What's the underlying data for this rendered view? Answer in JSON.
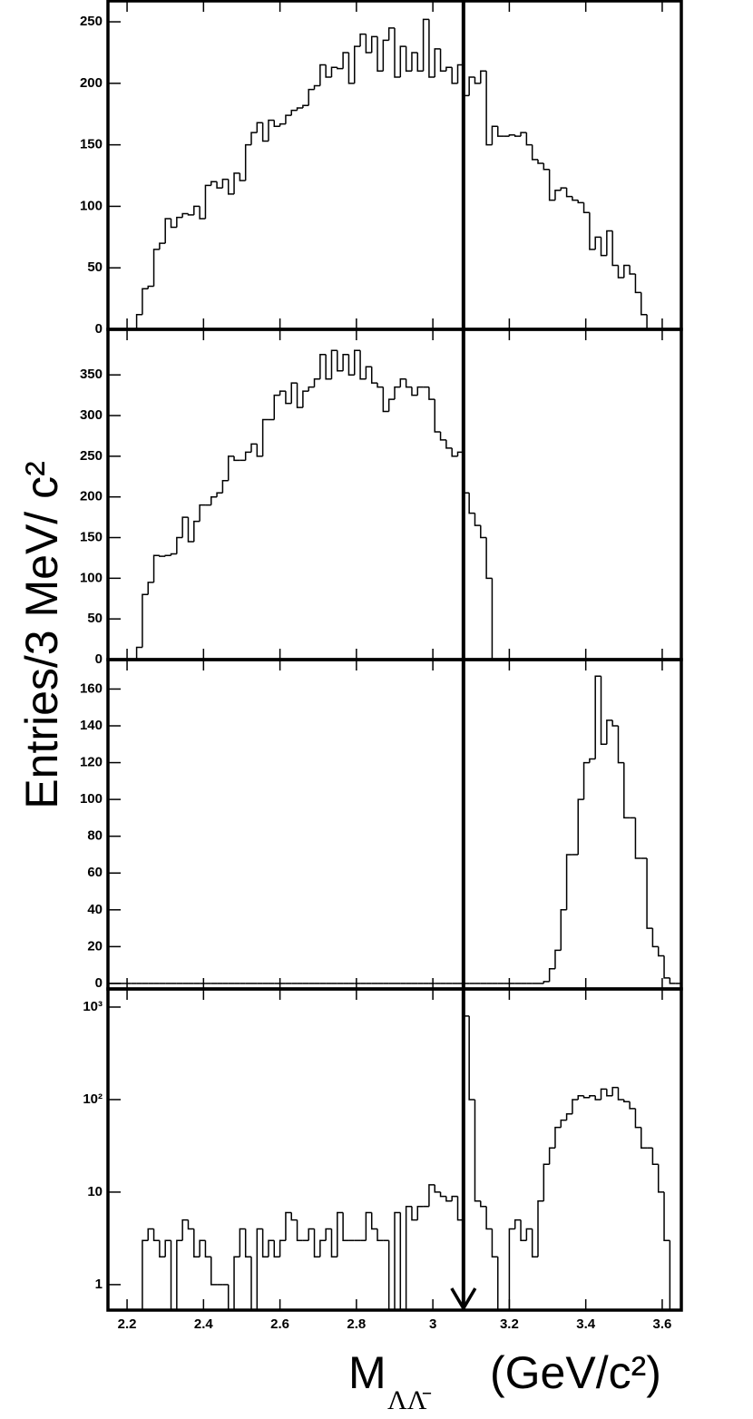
{
  "ylabel": "Entries/3 MeV/ c²",
  "xlabel": {
    "text": "M",
    "subscript": "ΛΛ̄",
    "unit": "(GeV/c²)"
  },
  "cut_x": 3.08,
  "chart_data": [
    {
      "type": "histogram",
      "xlim": [
        2.15,
        3.65
      ],
      "ylim": [
        0,
        267
      ],
      "yticks": [
        0,
        50,
        100,
        150,
        200,
        250
      ],
      "color": "#000000",
      "bins": [
        2.15,
        2.165,
        2.18,
        2.195,
        2.21,
        2.225,
        2.24,
        2.255,
        2.27,
        2.285,
        2.3,
        2.315,
        2.33,
        2.345,
        2.36,
        2.375,
        2.39,
        2.405,
        2.42,
        2.435,
        2.45,
        2.465,
        2.48,
        2.495,
        2.51,
        2.525,
        2.54,
        2.555,
        2.57,
        2.585,
        2.6,
        2.615,
        2.63,
        2.645,
        2.66,
        2.675,
        2.69,
        2.705,
        2.72,
        2.735,
        2.75,
        2.765,
        2.78,
        2.795,
        2.81,
        2.825,
        2.84,
        2.855,
        2.87,
        2.885,
        2.9,
        2.915,
        2.93,
        2.945,
        2.96,
        2.975,
        2.99,
        3.005,
        3.02,
        3.035,
        3.05,
        3.065,
        3.08,
        3.095,
        3.11,
        3.125,
        3.14,
        3.155,
        3.17,
        3.185,
        3.2,
        3.215,
        3.23,
        3.245,
        3.26,
        3.275,
        3.29,
        3.305,
        3.32,
        3.335,
        3.35,
        3.365,
        3.38,
        3.395,
        3.41,
        3.425,
        3.44,
        3.455,
        3.47,
        3.485,
        3.5,
        3.515,
        3.53,
        3.545,
        3.56,
        3.575,
        3.59,
        3.605,
        3.62,
        3.635,
        3.65
      ],
      "values": [
        0,
        0,
        0,
        0,
        0,
        12,
        33,
        35,
        65,
        70,
        90,
        83,
        91,
        94,
        93,
        100,
        90,
        117,
        120,
        115,
        122,
        110,
        127,
        121,
        150,
        160,
        168,
        153,
        170,
        165,
        167,
        174,
        178,
        180,
        182,
        195,
        198,
        215,
        205,
        213,
        212,
        225,
        200,
        230,
        240,
        225,
        238,
        210,
        235,
        245,
        205,
        230,
        210,
        225,
        210,
        252,
        205,
        228,
        210,
        213,
        200,
        215,
        190,
        205,
        200,
        210,
        150,
        165,
        157,
        157,
        158,
        157,
        160,
        150,
        138,
        135,
        130,
        105,
        113,
        115,
        108,
        105,
        103,
        95,
        65,
        75,
        60,
        80,
        52,
        42,
        52,
        45,
        30,
        12,
        0,
        0,
        0,
        0,
        0,
        0
      ]
    },
    {
      "type": "histogram",
      "xlim": [
        2.15,
        3.65
      ],
      "ylim": [
        0,
        406
      ],
      "yticks": [
        0,
        50,
        100,
        150,
        200,
        250,
        300,
        350
      ],
      "color": "#000000",
      "bins": [
        2.15,
        2.165,
        2.18,
        2.195,
        2.21,
        2.225,
        2.24,
        2.255,
        2.27,
        2.285,
        2.3,
        2.315,
        2.33,
        2.345,
        2.36,
        2.375,
        2.39,
        2.405,
        2.42,
        2.435,
        2.45,
        2.465,
        2.48,
        2.495,
        2.51,
        2.525,
        2.54,
        2.555,
        2.57,
        2.585,
        2.6,
        2.615,
        2.63,
        2.645,
        2.66,
        2.675,
        2.69,
        2.705,
        2.72,
        2.735,
        2.75,
        2.765,
        2.78,
        2.795,
        2.81,
        2.825,
        2.84,
        2.855,
        2.87,
        2.885,
        2.9,
        2.915,
        2.93,
        2.945,
        2.96,
        2.975,
        2.99,
        3.005,
        3.02,
        3.035,
        3.05,
        3.065,
        3.08,
        3.095,
        3.11,
        3.125,
        3.14,
        3.155,
        3.17,
        3.185,
        3.2,
        3.215,
        3.23,
        3.245,
        3.26,
        3.275,
        3.29,
        3.305,
        3.32,
        3.335,
        3.35,
        3.365,
        3.38,
        3.395,
        3.41,
        3.425,
        3.44,
        3.455,
        3.47,
        3.485,
        3.5,
        3.515,
        3.53,
        3.545,
        3.56,
        3.575,
        3.59,
        3.605,
        3.62,
        3.635,
        3.65
      ],
      "values": [
        0,
        0,
        0,
        0,
        0,
        15,
        80,
        95,
        128,
        127,
        128,
        130,
        150,
        175,
        145,
        170,
        190,
        190,
        200,
        205,
        220,
        250,
        245,
        245,
        255,
        265,
        250,
        295,
        295,
        325,
        330,
        315,
        340,
        310,
        330,
        335,
        345,
        375,
        345,
        380,
        355,
        375,
        350,
        380,
        345,
        360,
        340,
        335,
        305,
        320,
        335,
        345,
        335,
        325,
        335,
        335,
        320,
        280,
        270,
        260,
        250,
        255,
        205,
        180,
        165,
        150,
        100,
        0,
        0,
        0,
        0,
        0,
        0,
        0,
        0,
        0,
        0,
        0,
        0,
        0,
        0,
        0,
        0,
        0,
        0,
        0,
        0,
        0,
        0,
        0,
        0,
        0,
        0,
        0,
        0,
        0,
        0,
        0,
        0,
        0
      ]
    },
    {
      "type": "histogram",
      "xlim": [
        2.15,
        3.65
      ],
      "ylim": [
        -3,
        176
      ],
      "yticks": [
        0,
        20,
        40,
        60,
        80,
        100,
        120,
        140,
        160
      ],
      "color": "#000000",
      "bins": [
        2.15,
        2.165,
        2.18,
        2.195,
        2.21,
        2.225,
        2.24,
        2.255,
        2.27,
        2.285,
        2.3,
        2.315,
        2.33,
        2.345,
        2.36,
        2.375,
        2.39,
        2.405,
        2.42,
        2.435,
        2.45,
        2.465,
        2.48,
        2.495,
        2.51,
        2.525,
        2.54,
        2.555,
        2.57,
        2.585,
        2.6,
        2.615,
        2.63,
        2.645,
        2.66,
        2.675,
        2.69,
        2.705,
        2.72,
        2.735,
        2.75,
        2.765,
        2.78,
        2.795,
        2.81,
        2.825,
        2.84,
        2.855,
        2.87,
        2.885,
        2.9,
        2.915,
        2.93,
        2.945,
        2.96,
        2.975,
        2.99,
        3.005,
        3.02,
        3.035,
        3.05,
        3.065,
        3.08,
        3.095,
        3.11,
        3.125,
        3.14,
        3.155,
        3.17,
        3.185,
        3.2,
        3.215,
        3.23,
        3.245,
        3.26,
        3.275,
        3.29,
        3.305,
        3.32,
        3.335,
        3.35,
        3.365,
        3.38,
        3.395,
        3.41,
        3.425,
        3.44,
        3.455,
        3.47,
        3.485,
        3.5,
        3.515,
        3.53,
        3.545,
        3.56,
        3.575,
        3.59,
        3.605,
        3.62,
        3.635,
        3.65
      ],
      "values": [
        0,
        0,
        0,
        0,
        0,
        0,
        0,
        0,
        0,
        0,
        0,
        0,
        0,
        0,
        0,
        0,
        0,
        0,
        0,
        0,
        0,
        0,
        0,
        0,
        0,
        0,
        0,
        0,
        0,
        0,
        0,
        0,
        0,
        0,
        0,
        0,
        0,
        0,
        0,
        0,
        0,
        0,
        0,
        0,
        0,
        0,
        0,
        0,
        0,
        0,
        0,
        0,
        0,
        0,
        0,
        0,
        0,
        0,
        0,
        0,
        0,
        0,
        0,
        0,
        0,
        0,
        0,
        0,
        0,
        0,
        0,
        0,
        0,
        0,
        0,
        0,
        1,
        8,
        18,
        40,
        70,
        70,
        100,
        120,
        122,
        167,
        130,
        143,
        140,
        120,
        90,
        90,
        68,
        68,
        30,
        20,
        15,
        3,
        0,
        0
      ]
    },
    {
      "type": "histogram",
      "xlim": [
        2.15,
        3.65
      ],
      "ylim": [
        0.53,
        1570
      ],
      "log_y": true,
      "color": "#000000",
      "yticks": [
        {
          "value": 1000,
          "label": "10³"
        },
        {
          "value": 100,
          "label": "10²"
        },
        10,
        1
      ],
      "xticks": [
        2.2,
        2.4,
        2.6,
        2.8,
        3,
        3.2,
        3.4,
        3.6
      ],
      "bins": [
        2.15,
        2.165,
        2.18,
        2.195,
        2.21,
        2.225,
        2.24,
        2.255,
        2.27,
        2.285,
        2.3,
        2.315,
        2.33,
        2.345,
        2.36,
        2.375,
        2.39,
        2.405,
        2.42,
        2.435,
        2.45,
        2.465,
        2.48,
        2.495,
        2.51,
        2.525,
        2.54,
        2.555,
        2.57,
        2.585,
        2.6,
        2.615,
        2.63,
        2.645,
        2.66,
        2.675,
        2.69,
        2.705,
        2.72,
        2.735,
        2.75,
        2.765,
        2.78,
        2.795,
        2.81,
        2.825,
        2.84,
        2.855,
        2.87,
        2.885,
        2.9,
        2.915,
        2.93,
        2.945,
        2.96,
        2.975,
        2.99,
        3.005,
        3.02,
        3.035,
        3.05,
        3.065,
        3.08,
        3.095,
        3.11,
        3.125,
        3.14,
        3.155,
        3.17,
        3.185,
        3.2,
        3.215,
        3.23,
        3.245,
        3.26,
        3.275,
        3.29,
        3.305,
        3.32,
        3.335,
        3.35,
        3.365,
        3.38,
        3.395,
        3.41,
        3.425,
        3.44,
        3.455,
        3.47,
        3.485,
        3.5,
        3.515,
        3.53,
        3.545,
        3.56,
        3.575,
        3.59,
        3.605,
        3.62,
        3.635,
        3.65
      ],
      "values": [
        0,
        0,
        0,
        0,
        0,
        0,
        3,
        4,
        3,
        2,
        3,
        0,
        3,
        5,
        4,
        2,
        3,
        2,
        1,
        1,
        1,
        0,
        2,
        4,
        2,
        0,
        4,
        2,
        3,
        2,
        3,
        6,
        5,
        3,
        3,
        4,
        2,
        3,
        4,
        2,
        6,
        3,
        3,
        3,
        3,
        6,
        4,
        3,
        3,
        0,
        6,
        0,
        7,
        5,
        7,
        7,
        12,
        10,
        9,
        8,
        9,
        5,
        800,
        100,
        8,
        7,
        4,
        2,
        0,
        0,
        4,
        5,
        3,
        4,
        2,
        8,
        20,
        30,
        50,
        60,
        70,
        100,
        110,
        105,
        110,
        100,
        130,
        110,
        135,
        100,
        95,
        80,
        50,
        30,
        30,
        20,
        10,
        3,
        0,
        0
      ]
    }
  ]
}
